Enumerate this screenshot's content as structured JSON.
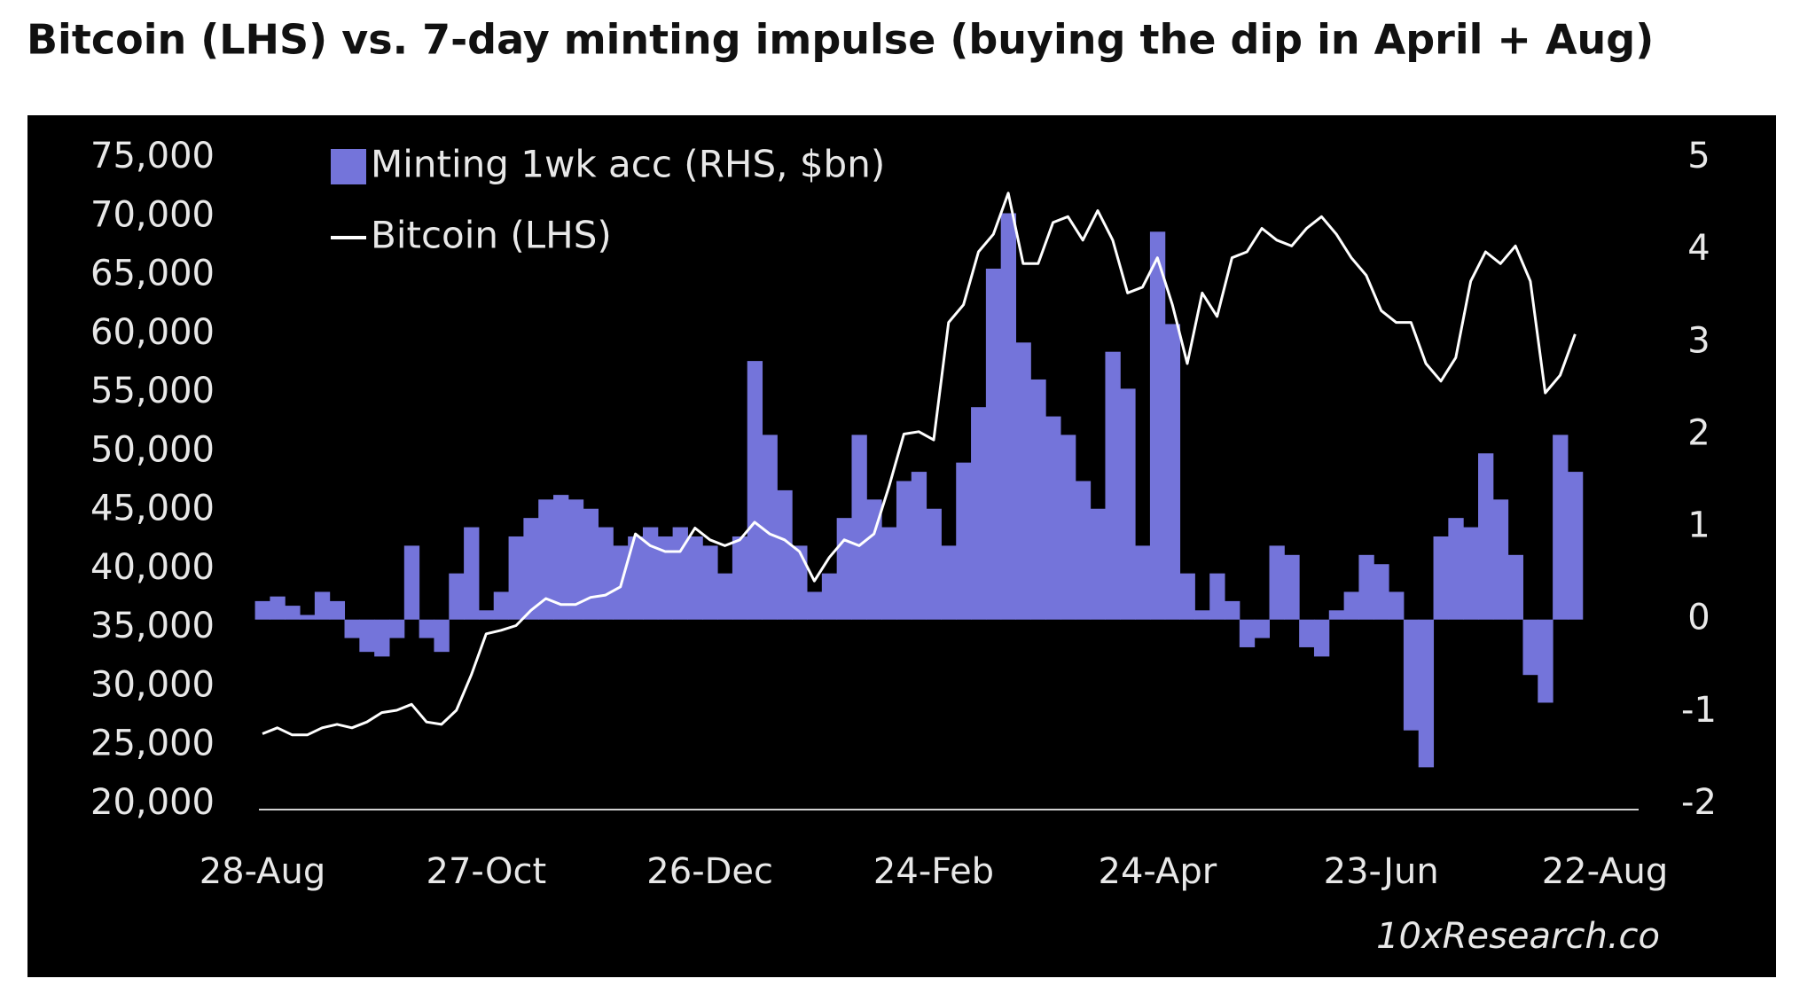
{
  "chart_data": {
    "type": "combo",
    "title": "Bitcoin (LHS) vs. 7-day minting impulse (buying the dip in April + Aug)",
    "source": "10xResearch.co",
    "categories": [
      "28-Aug",
      null,
      null,
      null,
      null,
      null,
      null,
      null,
      null,
      null,
      null,
      null,
      null,
      null,
      null,
      "27-Oct",
      null,
      null,
      null,
      null,
      null,
      null,
      null,
      null,
      null,
      null,
      null,
      null,
      null,
      null,
      "26-Dec",
      null,
      null,
      null,
      null,
      null,
      null,
      null,
      null,
      null,
      null,
      null,
      null,
      null,
      null,
      "24-Feb",
      null,
      null,
      null,
      null,
      null,
      null,
      null,
      null,
      null,
      null,
      null,
      null,
      null,
      null,
      "24-Apr",
      null,
      null,
      null,
      null,
      null,
      null,
      null,
      null,
      null,
      null,
      null,
      null,
      null,
      null,
      "23-Jun",
      null,
      null,
      null,
      null,
      null,
      null,
      null,
      null,
      null,
      null,
      null,
      null,
      null,
      null,
      "22-Aug"
    ],
    "series": [
      {
        "name": "Minting 1wk acc (RHS, $bn)",
        "type": "bar",
        "axis": "y2",
        "color": "#7474da",
        "values": [
          0.2,
          0.25,
          0.15,
          0.05,
          0.3,
          0.2,
          -0.2,
          -0.35,
          -0.4,
          -0.2,
          0.8,
          -0.2,
          -0.35,
          0.5,
          1.0,
          0.1,
          0.3,
          0.9,
          1.1,
          1.3,
          1.35,
          1.3,
          1.2,
          1.0,
          0.8,
          0.9,
          1.0,
          0.9,
          1.0,
          0.9,
          0.8,
          0.5,
          0.9,
          2.8,
          2.0,
          1.4,
          0.8,
          0.3,
          0.5,
          1.1,
          2.0,
          1.3,
          1.0,
          1.5,
          1.6,
          1.2,
          0.8,
          1.7,
          2.3,
          3.8,
          4.4,
          3.0,
          2.6,
          2.2,
          2.0,
          1.5,
          1.2,
          2.9,
          2.5,
          0.8,
          4.2,
          3.2,
          0.5,
          0.1,
          0.5,
          0.2,
          -0.3,
          -0.2,
          0.8,
          0.7,
          -0.3,
          -0.4,
          0.1,
          0.3,
          0.7,
          0.6,
          0.3,
          -1.2,
          -1.6,
          0.9,
          1.1,
          1.0,
          1.8,
          1.3,
          0.7,
          -0.6,
          -0.9,
          2.0,
          1.6,
          null,
          null
        ]
      },
      {
        "name": "Bitcoin (LHS)",
        "type": "line",
        "color": "#ffffff",
        "values": [
          26000,
          26500,
          25900,
          25900,
          26500,
          26800,
          26500,
          27000,
          27800,
          28000,
          28500,
          27000,
          26800,
          28000,
          31000,
          34500,
          34800,
          35200,
          36500,
          37500,
          37000,
          37000,
          37600,
          37800,
          38500,
          43000,
          42000,
          41500,
          41500,
          43500,
          42500,
          42000,
          42500,
          44000,
          43000,
          42500,
          41500,
          39000,
          41000,
          42500,
          42000,
          43000,
          47000,
          51500,
          51700,
          51000,
          61000,
          62500,
          67000,
          68500,
          72000,
          66000,
          66000,
          69500,
          70000,
          68000,
          70500,
          68000,
          63500,
          64000,
          66500,
          62500,
          57500,
          63500,
          61500,
          66500,
          67000,
          69000,
          68000,
          67500,
          69000,
          70000,
          68500,
          66500,
          65000,
          62000,
          61000,
          61000,
          57500,
          56000,
          58000,
          64500,
          67000,
          66000,
          67500,
          64500,
          55000,
          56500,
          60000,
          null,
          null
        ]
      }
    ],
    "ylim": [
      20000,
      75000
    ],
    "yticks": [
      {
        "value": 20000,
        "label": "20,000"
      },
      {
        "value": 25000,
        "label": "25,000"
      },
      {
        "value": 30000,
        "label": "30,000"
      },
      {
        "value": 35000,
        "label": "35,000"
      },
      {
        "value": 40000,
        "label": "40,000"
      },
      {
        "value": 45000,
        "label": "45,000"
      },
      {
        "value": 50000,
        "label": "50,000"
      },
      {
        "value": 55000,
        "label": "55,000"
      },
      {
        "value": 60000,
        "label": "60,000"
      },
      {
        "value": 65000,
        "label": "65,000"
      },
      {
        "value": 70000,
        "label": "70,000"
      },
      {
        "value": 75000,
        "label": "75,000"
      }
    ],
    "y2lim": [
      -2,
      5
    ],
    "y2ticks": [
      -2,
      -1,
      0,
      1,
      2,
      3,
      4,
      5
    ],
    "legend": "upper left",
    "grid": false
  }
}
